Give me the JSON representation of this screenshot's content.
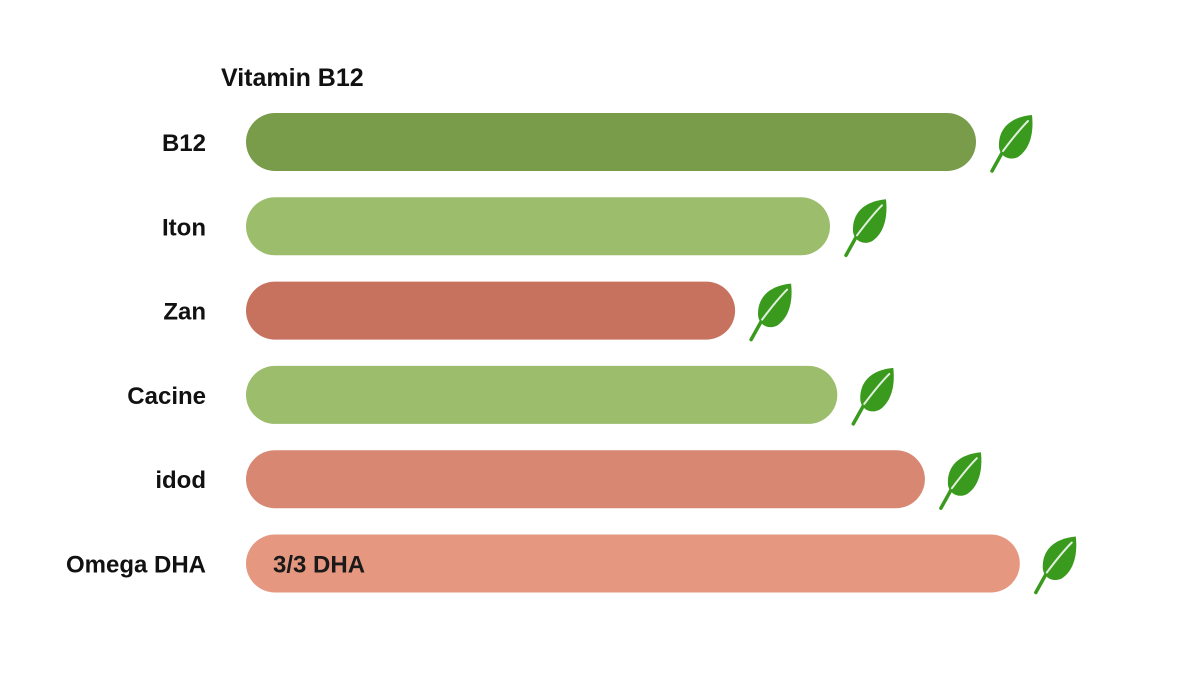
{
  "chart_data": {
    "type": "bar",
    "orientation": "horizontal",
    "title": "Vitamin B12",
    "xlabel": "",
    "ylabel": "",
    "categories": [
      "B12",
      "Iton",
      "Zan",
      "Cacine",
      "idod",
      "Omega DHA"
    ],
    "values": [
      100,
      80,
      67,
      81,
      93,
      106
    ],
    "xlim": [
      0,
      110
    ],
    "grid": false,
    "legend": "none",
    "bar_colors": [
      "#799c4b",
      "#9bbd6c",
      "#c7725e",
      "#9bbd6c",
      "#d88772",
      "#e6977f"
    ],
    "data_labels": [
      "",
      "",
      "",
      "",
      "",
      "3/3 DHA"
    ],
    "marker_icon": "leaf-icon",
    "marker_color": "#3a9a1e"
  }
}
